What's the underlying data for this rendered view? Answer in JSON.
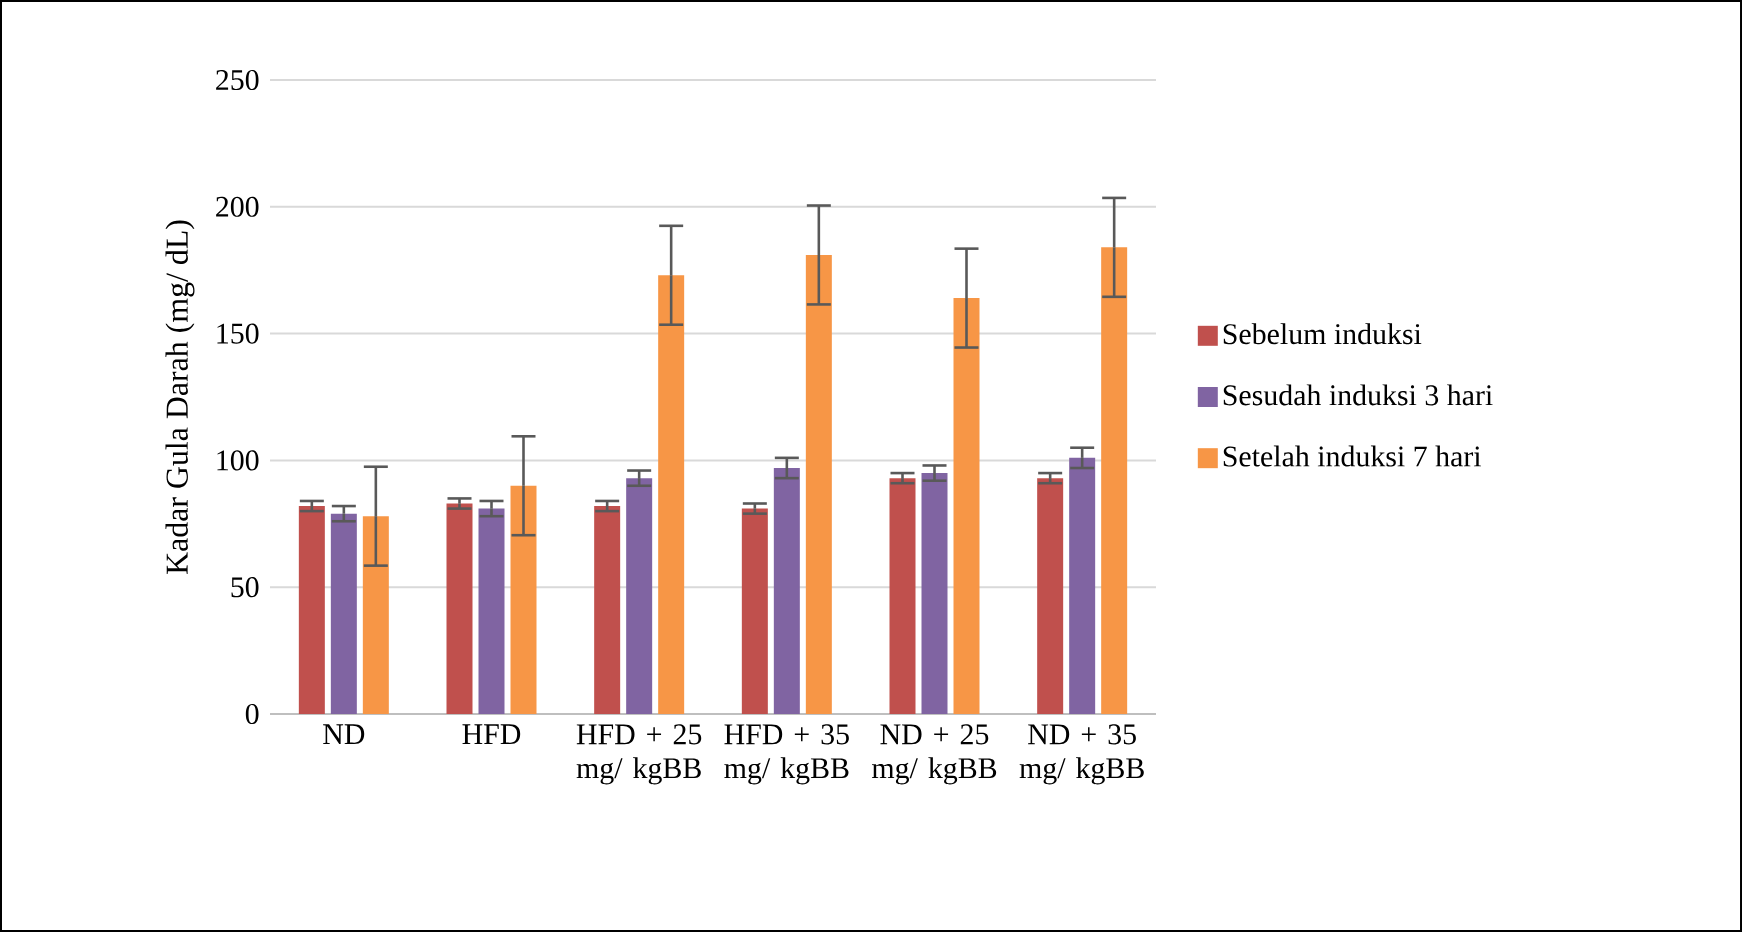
{
  "chart_data": {
    "type": "bar",
    "ylabel": "Kadar Gula Darah (mg/ dL)",
    "categories": [
      "ND",
      "HFD",
      "HFD + 25 mg/ kgBB",
      "HFD + 35 mg/ kgBB",
      "ND + 25 mg/ kgBB",
      "ND + 35 mg/ kgBB"
    ],
    "series": [
      {
        "name": "Sebelum induksi",
        "color": "#c0504d",
        "values": [
          82,
          83,
          82,
          81,
          93,
          93
        ],
        "errors": [
          2,
          2,
          2,
          2,
          2,
          2
        ]
      },
      {
        "name": "Sesudah induksi 3 hari",
        "color": "#8064a2",
        "values": [
          79,
          81,
          93,
          97,
          95,
          101
        ],
        "errors": [
          3,
          3,
          3,
          4,
          3,
          4
        ]
      },
      {
        "name": "Setelah induksi 7 hari",
        "color": "#f79646",
        "values": [
          78,
          90,
          173,
          181,
          164,
          184
        ],
        "errors": [
          19.5,
          19.5,
          19.5,
          19.5,
          19.5,
          19.5
        ]
      }
    ],
    "ylim": [
      0,
      250
    ],
    "yticks": [
      0,
      50,
      100,
      150,
      200,
      250
    ],
    "grid": "y",
    "legend": "right"
  }
}
